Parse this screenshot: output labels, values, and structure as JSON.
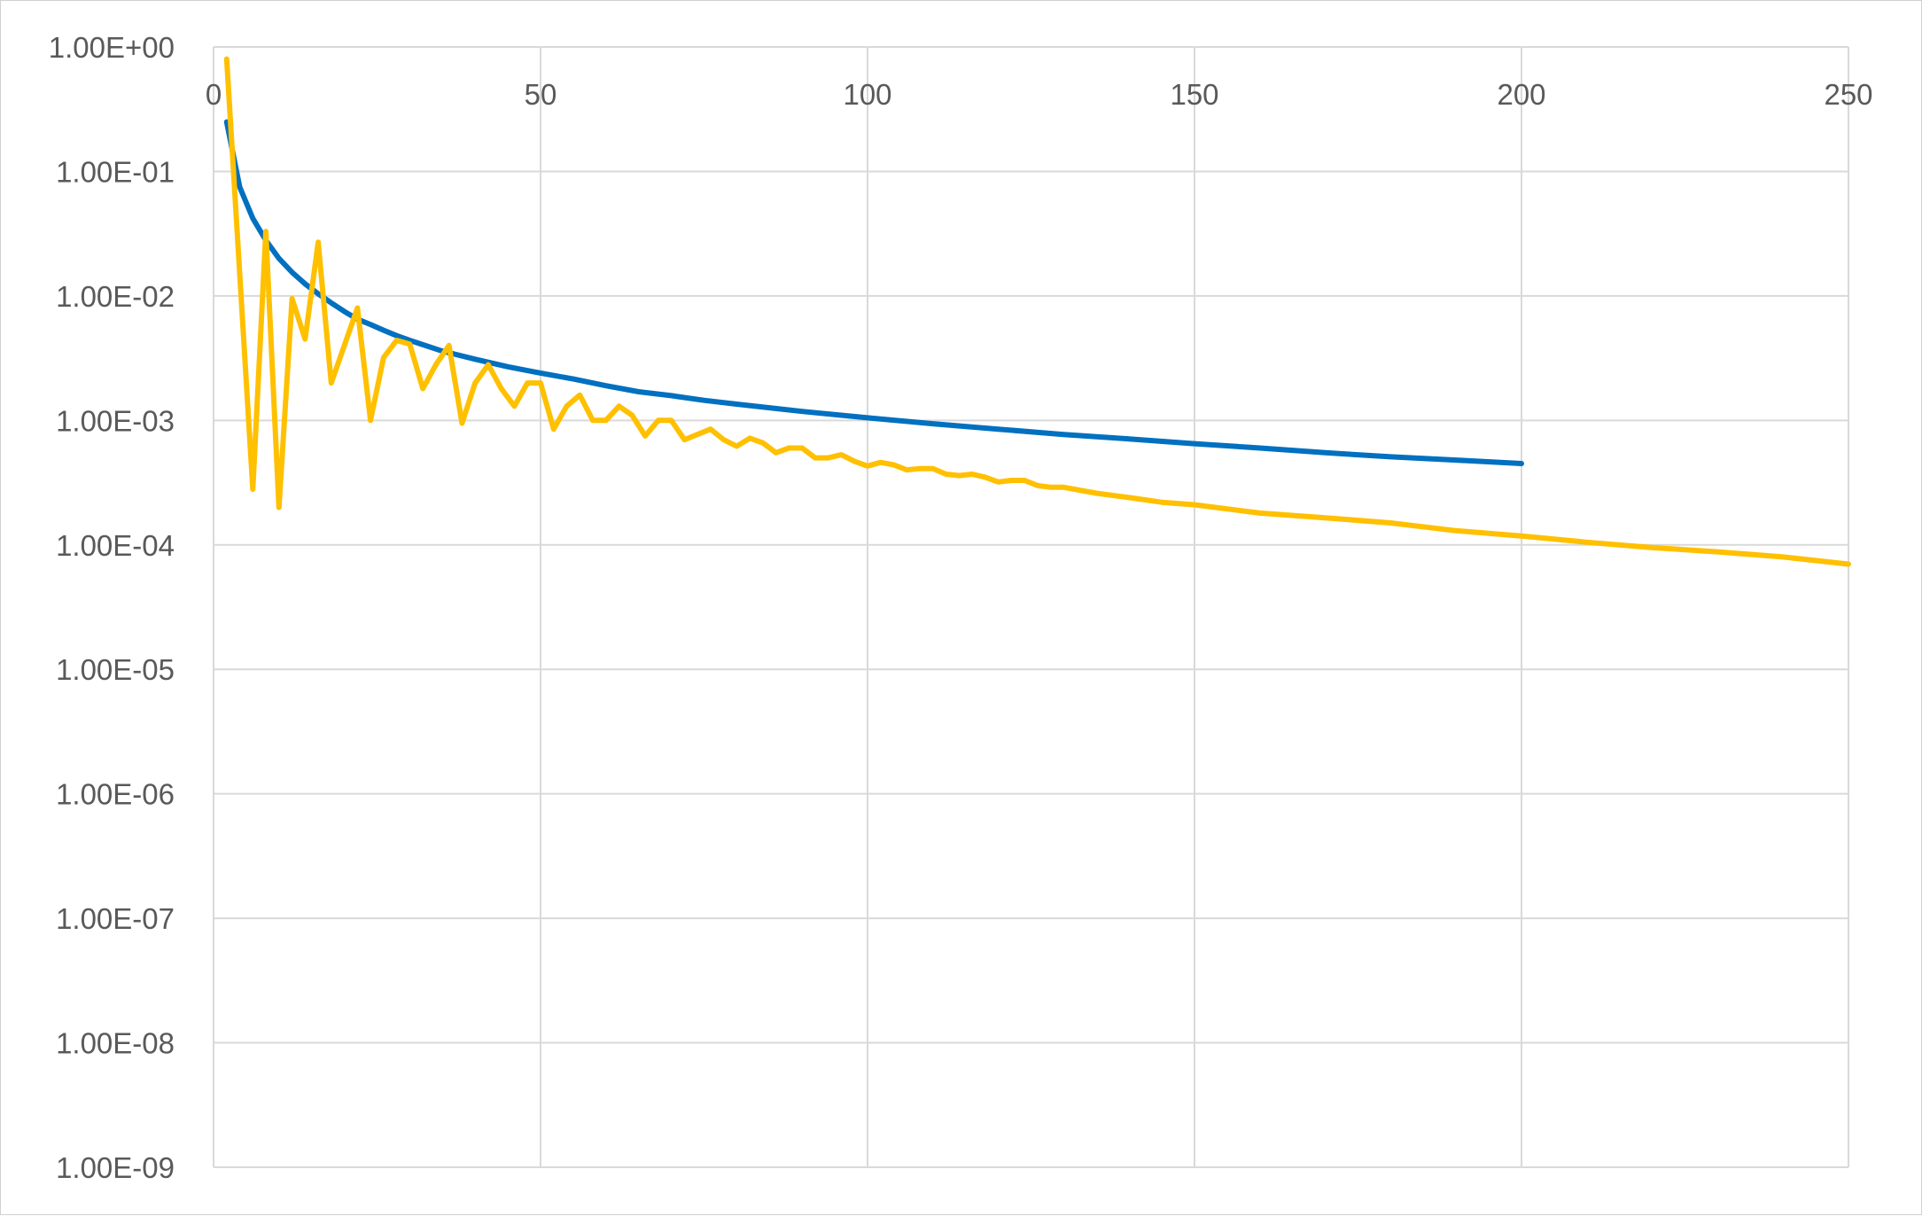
{
  "chart_data": {
    "type": "line",
    "title": "",
    "xlabel": "",
    "ylabel": "",
    "y_scale": "log",
    "xlim": [
      0,
      250
    ],
    "ylim": [
      1e-09,
      1
    ],
    "grid": true,
    "legend": "none",
    "x_ticks": [
      "0",
      "50",
      "100",
      "150",
      "200",
      "250"
    ],
    "x_tick_values": [
      0,
      50,
      100,
      150,
      200,
      250
    ],
    "y_ticks": [
      "1.00E+00",
      "1.00E-01",
      "1.00E-02",
      "1.00E-03",
      "1.00E-04",
      "1.00E-05",
      "1.00E-06",
      "1.00E-07",
      "1.00E-08",
      "1.00E-09"
    ],
    "y_tick_values": [
      1,
      0.1,
      0.01,
      0.001,
      0.0001,
      1e-05,
      1e-06,
      1e-07,
      1e-08,
      1e-09
    ],
    "series": [
      {
        "color": "#0070C0",
        "x": [
          2,
          4,
          6,
          8,
          10,
          12,
          14,
          16,
          18,
          20,
          22,
          24,
          26,
          28,
          30,
          35,
          40,
          45,
          50,
          55,
          60,
          65,
          70,
          75,
          80,
          90,
          100,
          110,
          120,
          130,
          140,
          150,
          160,
          170,
          180,
          190,
          200
        ],
        "y": [
          0.25,
          0.075,
          0.042,
          0.028,
          0.02,
          0.0155,
          0.0125,
          0.0104,
          0.0088,
          0.0075,
          0.0065,
          0.0059,
          0.0053,
          0.0048,
          0.0044,
          0.0036,
          0.0031,
          0.0027,
          0.0024,
          0.00215,
          0.0019,
          0.0017,
          0.00158,
          0.00145,
          0.00135,
          0.00118,
          0.00105,
          0.00094,
          0.00085,
          0.00077,
          0.00071,
          0.00065,
          0.0006,
          0.00055,
          0.00051,
          0.00048,
          0.00045
        ]
      },
      {
        "color": "#FFC000",
        "x": [
          2,
          6,
          8,
          10,
          12,
          14,
          16,
          18,
          22,
          24,
          26,
          28,
          30,
          32,
          34,
          36,
          38,
          40,
          42,
          44,
          46,
          48,
          50,
          52,
          54,
          56,
          58,
          60,
          62,
          64,
          66,
          68,
          70,
          72,
          76,
          78,
          80,
          82,
          84,
          86,
          88,
          90,
          92,
          94,
          96,
          98,
          100,
          102,
          104,
          106,
          108,
          110,
          112,
          114,
          116,
          118,
          120,
          122,
          124,
          126,
          128,
          130,
          135,
          140,
          145,
          150,
          160,
          170,
          180,
          190,
          200,
          210,
          220,
          230,
          240,
          250
        ],
        "y": [
          0.8,
          0.00028,
          0.033,
          0.0002,
          0.0095,
          0.0045,
          0.027,
          0.002,
          0.008,
          0.001,
          0.0032,
          0.0044,
          0.0041,
          0.0018,
          0.0028,
          0.004,
          0.00095,
          0.002,
          0.0028,
          0.0018,
          0.0013,
          0.002,
          0.002,
          0.00085,
          0.0013,
          0.0016,
          0.001,
          0.001,
          0.0013,
          0.0011,
          0.00075,
          0.001,
          0.001,
          0.0007,
          0.00085,
          0.0007,
          0.00062,
          0.00072,
          0.00066,
          0.00055,
          0.0006,
          0.0006,
          0.0005,
          0.0005,
          0.00053,
          0.00047,
          0.00043,
          0.00046,
          0.00044,
          0.0004,
          0.00041,
          0.00041,
          0.00037,
          0.00036,
          0.00037,
          0.00035,
          0.00032,
          0.00033,
          0.00033,
          0.0003,
          0.00029,
          0.00029,
          0.00026,
          0.00024,
          0.00022,
          0.00021,
          0.00018,
          0.000165,
          0.00015,
          0.00013,
          0.000118,
          0.000105,
          9.5e-05,
          8.8e-05,
          8e-05,
          7e-05
        ]
      }
    ]
  }
}
